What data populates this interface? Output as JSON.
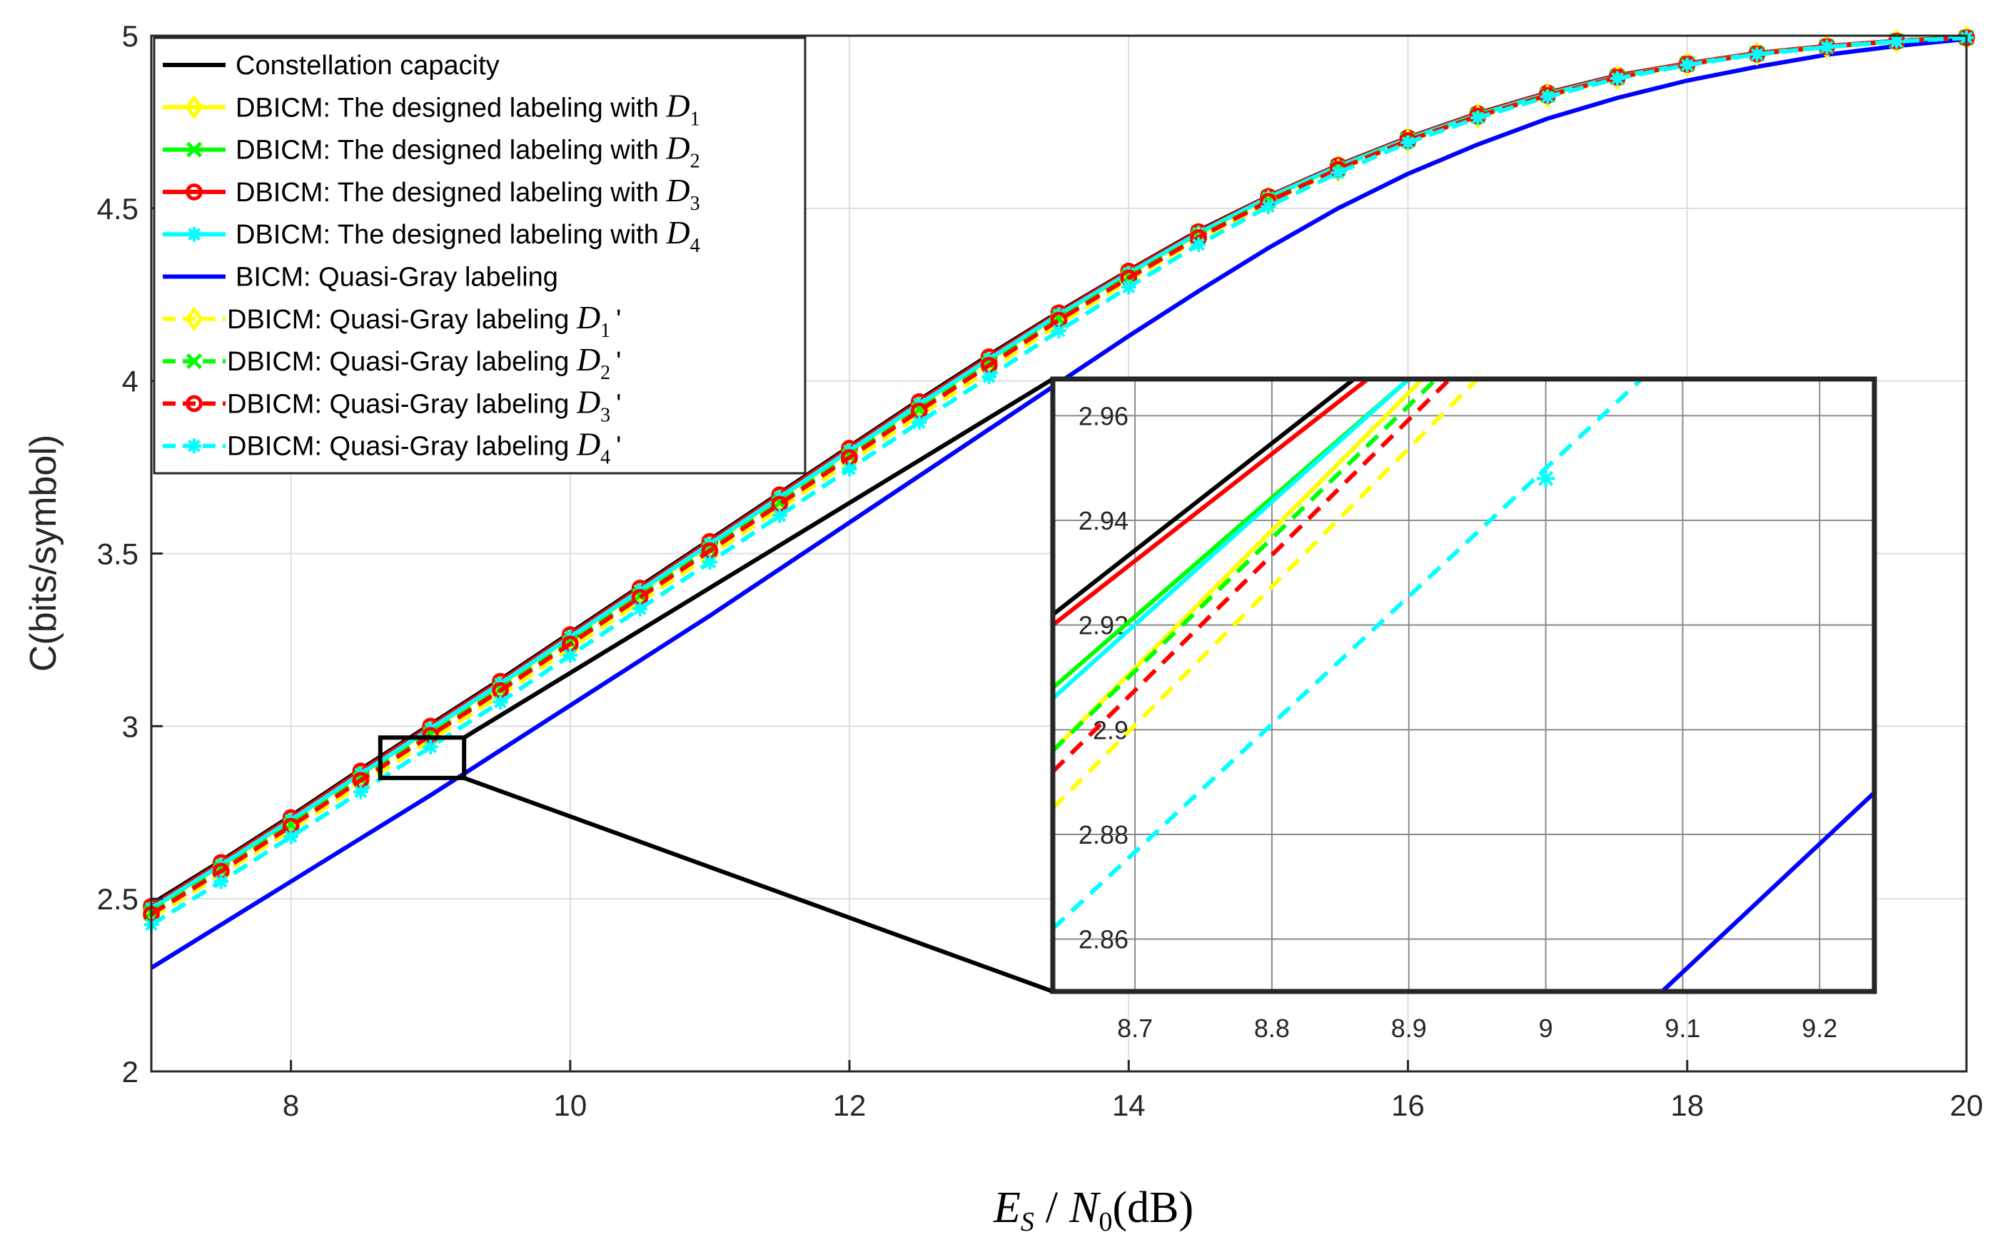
{
  "chart_data": {
    "type": "line",
    "title": "",
    "xlabel": {
      "E": "E",
      "S": "S",
      "slash": "/",
      "N": "N",
      "zero": "0",
      "unit": "(dB)"
    },
    "ylabel": "C(bits/symbol)",
    "xlim": [
      7,
      20
    ],
    "ylim": [
      2,
      5
    ],
    "x_ticks": [
      "8",
      "10",
      "12",
      "14",
      "16",
      "18",
      "20"
    ],
    "y_ticks": [
      "2",
      "2.5",
      "3",
      "3.5",
      "4",
      "4.5",
      "5"
    ],
    "grid": true,
    "legend_position": "top-left",
    "x": [
      7,
      7.5,
      8,
      8.5,
      9,
      9.5,
      10,
      10.5,
      11,
      11.5,
      12,
      12.5,
      13,
      13.5,
      14,
      14.5,
      15,
      15.5,
      16,
      16.5,
      17,
      17.5,
      18,
      18.5,
      19,
      19.5,
      20
    ],
    "series": [
      {
        "name": "Constellation capacity",
        "color": "#000000",
        "dash": false,
        "marker": "none",
        "math": "",
        "prime": false,
        "values": [
          2.485,
          2.61,
          2.74,
          2.875,
          3.005,
          3.135,
          3.27,
          3.405,
          3.54,
          3.675,
          3.81,
          3.945,
          4.075,
          4.2,
          4.32,
          4.435,
          4.535,
          4.625,
          4.705,
          4.775,
          4.835,
          4.885,
          4.92,
          4.95,
          4.97,
          4.985,
          4.995
        ]
      },
      {
        "name": "DBICM: The designed labeling with ",
        "color": "#ffff00",
        "dash": false,
        "marker": "diamond",
        "math": "D",
        "sub": "1",
        "prime": false,
        "values": [
          2.47,
          2.595,
          2.725,
          2.86,
          2.99,
          3.12,
          3.255,
          3.39,
          3.525,
          3.66,
          3.795,
          3.93,
          4.06,
          4.19,
          4.31,
          4.425,
          4.53,
          4.62,
          4.7,
          4.77,
          4.83,
          4.88,
          4.918,
          4.948,
          4.968,
          4.984,
          4.994
        ]
      },
      {
        "name": "DBICM: The designed labeling with ",
        "color": "#00ff00",
        "dash": false,
        "marker": "x",
        "math": "D",
        "sub": "2",
        "prime": false,
        "values": [
          2.475,
          2.6,
          2.73,
          2.865,
          2.995,
          3.125,
          3.26,
          3.395,
          3.53,
          3.665,
          3.8,
          3.935,
          4.065,
          4.195,
          4.315,
          4.43,
          4.532,
          4.622,
          4.702,
          4.772,
          4.832,
          4.882,
          4.919,
          4.949,
          4.969,
          4.985,
          4.995
        ]
      },
      {
        "name": "DBICM: The designed labeling with ",
        "color": "#ff0000",
        "dash": false,
        "marker": "circle",
        "math": "D",
        "sub": "3",
        "prime": false,
        "values": [
          2.478,
          2.605,
          2.735,
          2.87,
          3.0,
          3.13,
          3.265,
          3.4,
          3.535,
          3.67,
          3.805,
          3.94,
          4.07,
          4.197,
          4.318,
          4.432,
          4.534,
          4.624,
          4.704,
          4.774,
          4.834,
          4.884,
          4.92,
          4.95,
          4.97,
          4.985,
          4.995
        ]
      },
      {
        "name": "DBICM: The designed labeling with ",
        "color": "#00ffff",
        "dash": false,
        "marker": "star",
        "math": "D",
        "sub": "4",
        "prime": false,
        "values": [
          2.472,
          2.598,
          2.728,
          2.862,
          2.993,
          3.123,
          3.258,
          3.393,
          3.528,
          3.663,
          3.798,
          3.933,
          4.063,
          4.192,
          4.312,
          4.428,
          4.531,
          4.621,
          4.701,
          4.771,
          4.831,
          4.881,
          4.918,
          4.948,
          4.968,
          4.984,
          4.994
        ]
      },
      {
        "name": "BICM: Quasi-Gray labeling",
        "color": "#0000ff",
        "dash": false,
        "marker": "none",
        "math": "",
        "prime": false,
        "values": [
          2.3,
          2.425,
          2.55,
          2.675,
          2.8,
          2.93,
          3.06,
          3.19,
          3.32,
          3.455,
          3.59,
          3.725,
          3.86,
          3.995,
          4.13,
          4.26,
          4.385,
          4.5,
          4.6,
          4.685,
          4.76,
          4.82,
          4.87,
          4.91,
          4.945,
          4.97,
          4.99
        ]
      },
      {
        "name": "DBICM: Quasi-Gray labeling ",
        "color": "#ffff00",
        "dash": true,
        "marker": "diamond",
        "math": "D",
        "sub": "1",
        "prime": true,
        "values": [
          2.445,
          2.57,
          2.7,
          2.83,
          2.96,
          3.09,
          3.225,
          3.36,
          3.495,
          3.63,
          3.765,
          3.9,
          4.032,
          4.165,
          4.29,
          4.41,
          4.515,
          4.61,
          4.695,
          4.765,
          4.825,
          4.878,
          4.916,
          4.947,
          4.968,
          4.984,
          4.994
        ]
      },
      {
        "name": "DBICM: Quasi-Gray labeling ",
        "color": "#00ff00",
        "dash": true,
        "marker": "x",
        "math": "D",
        "sub": "2",
        "prime": true,
        "values": [
          2.46,
          2.585,
          2.715,
          2.848,
          2.978,
          3.108,
          3.243,
          3.378,
          3.513,
          3.648,
          3.783,
          3.918,
          4.05,
          4.18,
          4.302,
          4.418,
          4.522,
          4.614,
          4.697,
          4.768,
          4.828,
          4.879,
          4.917,
          4.948,
          4.968,
          4.984,
          4.994
        ]
      },
      {
        "name": "DBICM: Quasi-Gray labeling ",
        "color": "#ff0000",
        "dash": true,
        "marker": "circle",
        "math": "D",
        "sub": "3",
        "prime": true,
        "values": [
          2.455,
          2.58,
          2.71,
          2.843,
          2.973,
          3.103,
          3.238,
          3.373,
          3.508,
          3.643,
          3.778,
          3.913,
          4.045,
          4.176,
          4.298,
          4.415,
          4.52,
          4.613,
          4.696,
          4.767,
          4.827,
          4.879,
          4.917,
          4.947,
          4.968,
          4.984,
          4.994
        ]
      },
      {
        "name": "DBICM: Quasi-Gray labeling ",
        "color": "#00ffff",
        "dash": true,
        "marker": "star",
        "math": "D",
        "sub": "4",
        "prime": true,
        "values": [
          2.425,
          2.55,
          2.68,
          2.81,
          2.94,
          3.07,
          3.205,
          3.34,
          3.475,
          3.61,
          3.745,
          3.88,
          4.012,
          4.145,
          4.272,
          4.395,
          4.505,
          4.603,
          4.69,
          4.762,
          4.823,
          4.876,
          4.915,
          4.946,
          4.967,
          4.983,
          4.994
        ]
      }
    ],
    "zoom_region": {
      "xlim": [
        8.64,
        9.24
      ],
      "ylim": [
        2.85,
        2.967
      ]
    },
    "inset": {
      "xlim": [
        8.64,
        9.24
      ],
      "ylim": [
        2.85,
        2.967
      ],
      "x_ticks": [
        "8.7",
        "8.8",
        "8.9",
        "9",
        "9.1",
        "9.2"
      ],
      "y_ticks": [
        "2.86",
        "2.88",
        "2.9",
        "2.92",
        "2.94",
        "2.96"
      ],
      "lines": [
        {
          "color": "#000000",
          "dash": false,
          "x1": 8.64,
          "y1": 2.922,
          "x2": 8.86,
          "y2": 2.967
        },
        {
          "color": "#ff0000",
          "dash": false,
          "x1": 8.64,
          "y1": 2.92,
          "x2": 8.87,
          "y2": 2.967
        },
        {
          "color": "#00ff00",
          "dash": false,
          "x1": 8.64,
          "y1": 2.908,
          "x2": 8.9,
          "y2": 2.967
        },
        {
          "color": "#00ffff",
          "dash": false,
          "x1": 8.64,
          "y1": 2.906,
          "x2": 8.9,
          "y2": 2.967
        },
        {
          "color": "#ffff00",
          "dash": false,
          "x1": 8.64,
          "y1": 2.896,
          "x2": 8.91,
          "y2": 2.967
        },
        {
          "color": "#00ff00",
          "dash": true,
          "x1": 8.64,
          "y1": 2.896,
          "x2": 8.92,
          "y2": 2.967
        },
        {
          "color": "#ff0000",
          "dash": true,
          "x1": 8.64,
          "y1": 2.892,
          "x2": 8.93,
          "y2": 2.967
        },
        {
          "color": "#ffff00",
          "dash": true,
          "x1": 8.64,
          "y1": 2.885,
          "x2": 8.95,
          "y2": 2.967
        },
        {
          "color": "#00ffff",
          "dash": true,
          "x1": 8.64,
          "y1": 2.862,
          "x2": 9.07,
          "y2": 2.967
        },
        {
          "color": "#0000ff",
          "dash": false,
          "x1": 9.085,
          "y1": 2.85,
          "x2": 9.24,
          "y2": 2.888
        }
      ],
      "markers": [
        {
          "color": "#00ffff",
          "marker": "star",
          "x": 9.0,
          "y": 2.948
        }
      ]
    }
  }
}
